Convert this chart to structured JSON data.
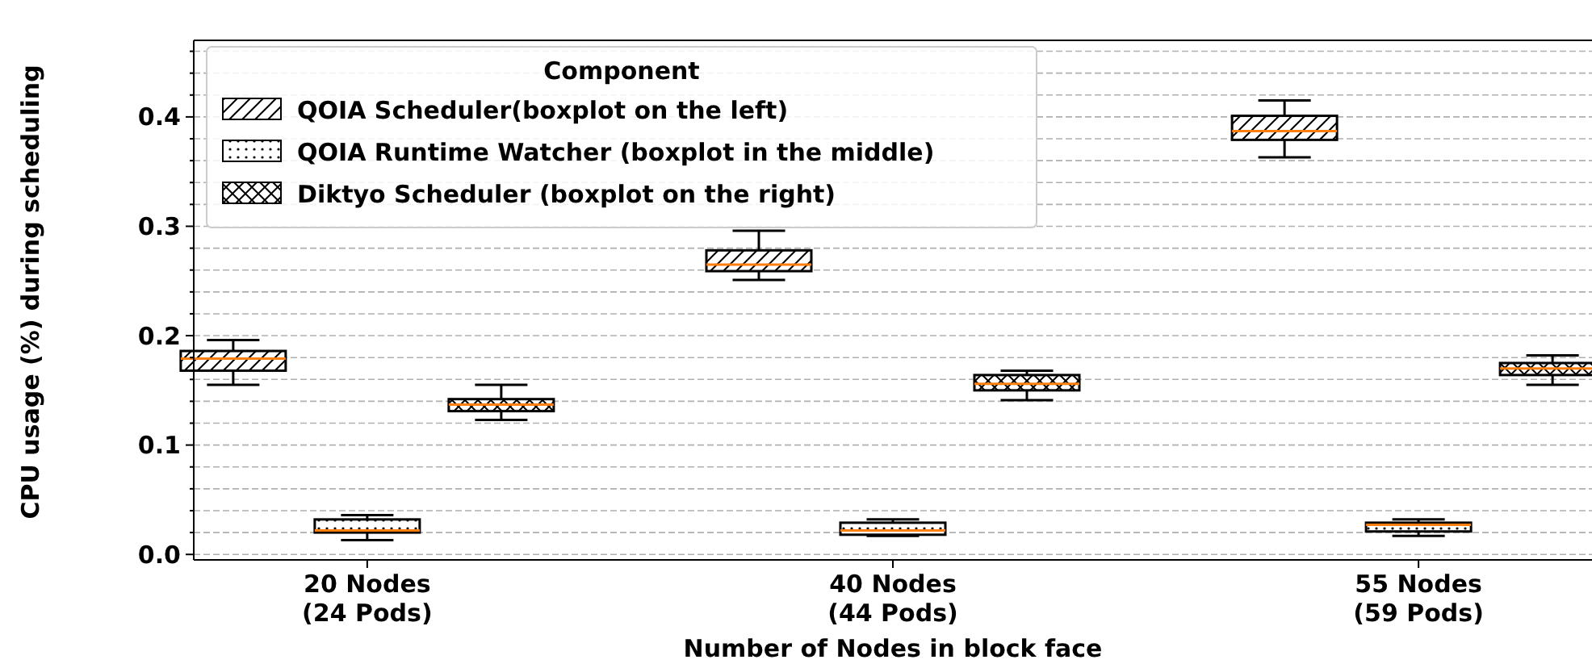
{
  "chart_data": {
    "type": "box",
    "xlabel": "Number of Nodes in block face",
    "ylabel": "CPU usage (%) during scheduling",
    "legend_title": "Component",
    "legend": "top left",
    "grid": "y",
    "categories": [
      "20 Nodes\n(24 Pods)",
      "40 Nodes\n(44 Pods)",
      "55 Nodes\n(59 Pods)"
    ],
    "ylim": [
      -0.005,
      0.47
    ],
    "yticks": [
      {
        "value": 0,
        "label": "0.0"
      },
      {
        "value": 0.02,
        "label": null
      },
      {
        "value": 0.04,
        "label": null
      },
      {
        "value": 0.06,
        "label": null
      },
      {
        "value": 0.08,
        "label": null
      },
      0.1,
      {
        "value": 0.12,
        "label": null
      },
      {
        "value": 0.14,
        "label": null
      },
      {
        "value": 0.16,
        "label": null
      },
      {
        "value": 0.18,
        "label": null
      },
      0.2,
      {
        "value": 0.22,
        "label": null
      },
      {
        "value": 0.24,
        "label": null
      },
      {
        "value": 0.26,
        "label": null
      },
      {
        "value": 0.28,
        "label": null
      },
      0.3,
      {
        "value": 0.32,
        "label": null
      },
      {
        "value": 0.34,
        "label": null
      },
      {
        "value": 0.36,
        "label": null
      },
      {
        "value": 0.38,
        "label": null
      },
      0.4,
      {
        "value": 0.42,
        "label": null
      },
      {
        "value": 0.44,
        "label": null
      },
      {
        "value": 0.46,
        "label": null
      }
    ],
    "series": [
      {
        "name": "QOIA Scheduler(boxplot on the left)",
        "color": "#ffffff",
        "boxes": [
          {
            "low": 0.155,
            "q1": 0.168,
            "median": 0.179,
            "q3": 0.186,
            "high": 0.196
          },
          {
            "low": 0.251,
            "q1": 0.259,
            "median": 0.265,
            "q3": 0.278,
            "high": 0.296
          },
          {
            "low": 0.363,
            "q1": 0.379,
            "median": 0.387,
            "q3": 0.401,
            "high": 0.415
          }
        ]
      },
      {
        "name": "QOIA Runtime Watcher (boxplot in the middle)",
        "color": "#ffffff",
        "boxes": [
          {
            "low": 0.013,
            "q1": 0.02,
            "median": 0.022,
            "q3": 0.032,
            "high": 0.036
          },
          {
            "low": 0.017,
            "q1": 0.018,
            "median": 0.022,
            "q3": 0.029,
            "high": 0.032
          },
          {
            "low": 0.017,
            "q1": 0.021,
            "median": 0.027,
            "q3": 0.029,
            "high": 0.032
          }
        ]
      },
      {
        "name": "Diktyo Scheduler (boxplot on the right)",
        "color": "#ffffff",
        "boxes": [
          {
            "low": 0.123,
            "q1": 0.131,
            "median": 0.137,
            "q3": 0.142,
            "high": 0.155
          },
          {
            "low": 0.141,
            "q1": 0.15,
            "median": 0.156,
            "q3": 0.164,
            "high": 0.168
          },
          {
            "low": 0.155,
            "q1": 0.164,
            "median": 0.17,
            "q3": 0.175,
            "high": 0.182
          }
        ]
      }
    ]
  }
}
